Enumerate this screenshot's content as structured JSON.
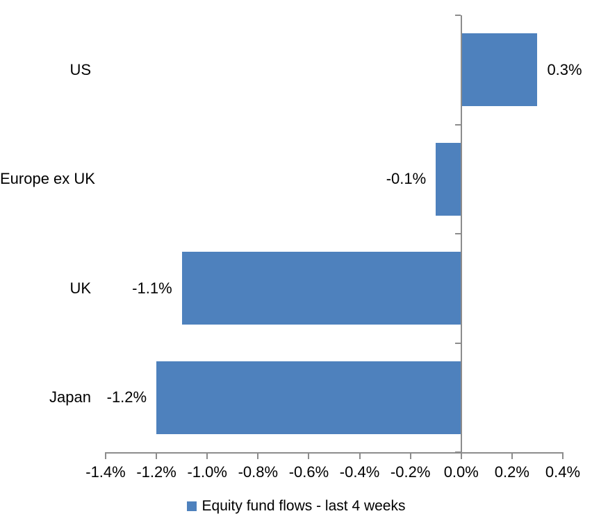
{
  "chart_data": {
    "type": "bar",
    "orientation": "horizontal",
    "title": "",
    "categories": [
      "US",
      "Europe ex UK",
      "UK",
      "Japan"
    ],
    "values": [
      0.3,
      -0.1,
      -1.1,
      -1.2
    ],
    "data_labels": [
      "0.3%",
      "-0.1%",
      "-1.1%",
      "-1.2%"
    ],
    "x_tick_values": [
      -1.4,
      -1.2,
      -1.0,
      -0.8,
      -0.6,
      -0.4,
      -0.2,
      0.0,
      0.2,
      0.4
    ],
    "x_tick_labels": [
      "-1.4%",
      "-1.2%",
      "-1.0%",
      "-0.8%",
      "-0.6%",
      "-0.4%",
      "-0.2%",
      "0.0%",
      "0.2%",
      "0.4%"
    ],
    "xlim": [
      -1.4,
      0.4
    ],
    "grid": false,
    "legend_position": "bottom-center",
    "legend": [
      {
        "label": "Equity fund flows - last 4 weeks",
        "color": "#4E81BD"
      }
    ],
    "bar_color": "#4E81BD",
    "axis_color": "#8C8C8C",
    "text_color": "#000000",
    "background_color": "#FFFFFF"
  }
}
